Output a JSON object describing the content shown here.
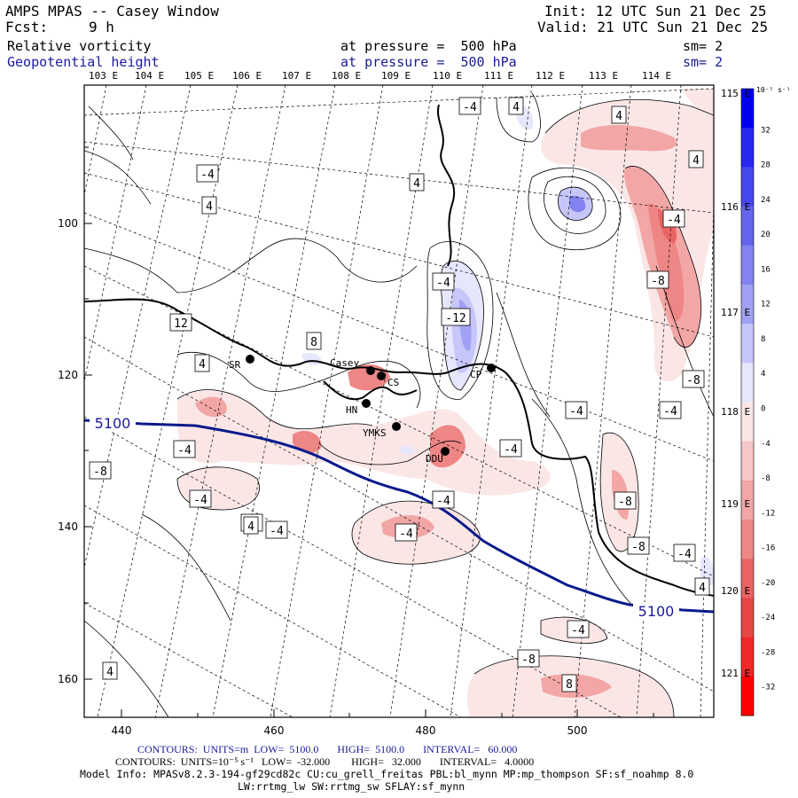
{
  "header": {
    "title": "AMPS MPAS -- Casey Window",
    "forecast_label": "Fcst:",
    "forecast_value": "9 h",
    "init": "Init: 12 UTC Sun 21 Dec 25",
    "valid": "Valid: 21 UTC Sun 21 Dec 25",
    "field1_name": "Relative vorticity",
    "field1_level": "at pressure =  500 hPa",
    "field1_smooth": "sm= 2",
    "field2_name": "Geopotential height",
    "field2_level": "at pressure =  500 hPa",
    "field2_smooth": "sm= 2"
  },
  "map": {
    "top_lon_labels": [
      "103 E",
      "104 E",
      "105 E",
      "106 E",
      "107 E",
      "108 E",
      "109 E",
      "110 E",
      "111 E",
      "112 E",
      "113 E",
      "114 E"
    ],
    "right_lon_labels": [
      "115 E",
      "116 E",
      "117 E",
      "118 E",
      "119 E",
      "120 E",
      "121 E"
    ],
    "x_ticks": [
      "440",
      "460",
      "480",
      "500"
    ],
    "y_ticks": [
      "100",
      "120",
      "140",
      "160"
    ],
    "stations": [
      "SR",
      "Casey",
      "CS",
      "HN",
      "CP",
      "YMKS",
      "DDU"
    ],
    "height_labels": [
      "5100",
      "5100"
    ],
    "contour_labels": [
      "-4",
      "4",
      "4",
      "4",
      "4",
      "-4",
      "4",
      "-4",
      "-4",
      "-8",
      "-12",
      "8",
      "12",
      "4",
      "-8",
      "-4",
      "-4",
      "-4",
      "-4",
      "-8",
      "-4",
      "-4",
      "-8",
      "-4",
      "-4",
      "-4",
      "-8",
      "-4",
      "4",
      "-4",
      "-8",
      "4",
      "8",
      "4"
    ]
  },
  "colorbar": {
    "unit": "10⁻⁵ s⁻¹",
    "labels": [
      "32",
      "28",
      "24",
      "20",
      "16",
      "12",
      "8",
      "4",
      "0",
      "-4",
      "-8",
      "-12",
      "-16",
      "-20",
      "-24",
      "-28",
      "-32"
    ],
    "colors_positive": [
      "#0000ee",
      "#2828ee",
      "#4646ee",
      "#6464ee",
      "#8282f0",
      "#a0a0f4",
      "#c6c6f8",
      "#e6e6fc"
    ],
    "colors_negative": [
      "#fbe6e6",
      "#f7c6c6",
      "#f2a6a6",
      "#ee8686",
      "#ea6464",
      "#e64646",
      "#f02828",
      "#ff0000"
    ]
  },
  "footer": {
    "height_contours": "CONTOURS:  UNITS=m  LOW=  5100.0       HIGH=  5100.0       INTERVAL=   60.000",
    "vort_contours": "CONTOURS:  UNITS=10⁻⁵ s⁻¹   LOW=  -32.000        HIGH=   32.000       INTERVAL=   4.0000",
    "model_info_1": "Model Info: MPASv8.2.3-194-gf29cd82c CU:cu_grell_freitas PBL:bl_mynn MP:mp_thompson SF:sf_noahmp 8.0",
    "model_info_2": "LW:rrtmg_lw SW:rrtmg_sw SFLAY:sf_mynn"
  }
}
